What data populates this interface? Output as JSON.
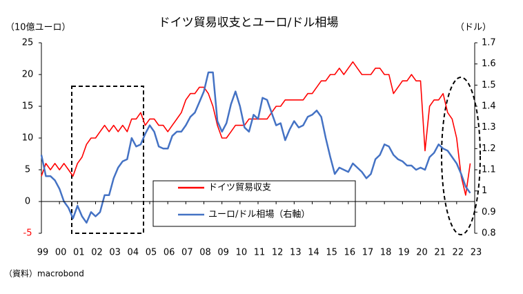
{
  "chart_data": {
    "type": "line",
    "title": "ドイツ貿易収支とユーロ/ドル相場",
    "y_label": "（10億ユーロ）",
    "y2_label": "（ドル）",
    "source": "（資料）macrobond",
    "x": [
      1999,
      1999.25,
      1999.5,
      1999.75,
      2000,
      2000.25,
      2000.5,
      2000.75,
      2001,
      2001.25,
      2001.5,
      2001.75,
      2002,
      2002.25,
      2002.5,
      2002.75,
      2003,
      2003.25,
      2003.5,
      2003.75,
      2004,
      2004.25,
      2004.5,
      2004.75,
      2005,
      2005.25,
      2005.5,
      2005.75,
      2006,
      2006.25,
      2006.5,
      2006.75,
      2007,
      2007.25,
      2007.5,
      2007.75,
      2008,
      2008.25,
      2008.5,
      2008.75,
      2009,
      2009.25,
      2009.5,
      2009.75,
      2010,
      2010.25,
      2010.5,
      2010.75,
      2011,
      2011.25,
      2011.5,
      2011.75,
      2012,
      2012.25,
      2012.5,
      2012.75,
      2013,
      2013.25,
      2013.5,
      2013.75,
      2014,
      2014.25,
      2014.5,
      2014.75,
      2015,
      2015.25,
      2015.5,
      2015.75,
      2016,
      2016.25,
      2016.5,
      2016.75,
      2017,
      2017.25,
      2017.5,
      2017.75,
      2018,
      2018.25,
      2018.5,
      2018.75,
      2019,
      2019.25,
      2019.5,
      2019.75,
      2020,
      2020.25,
      2020.5,
      2020.75,
      2021,
      2021.25,
      2021.5,
      2021.75,
      2022,
      2022.25,
      2022.5,
      2022.75
    ],
    "series": [
      {
        "name": "ドイツ貿易収支",
        "color": "#ff0000",
        "values": [
          4,
          6,
          5,
          6,
          5,
          6,
          5,
          4,
          6,
          7,
          9,
          10,
          10,
          11,
          12,
          11,
          12,
          11,
          12,
          11,
          13,
          13,
          14,
          12,
          13,
          13,
          12,
          12,
          11,
          12,
          13,
          14,
          16,
          17,
          17,
          18,
          18,
          17,
          15,
          12,
          10,
          10,
          11,
          12,
          12,
          12,
          13,
          13,
          13,
          13,
          13,
          14,
          15,
          15,
          16,
          16,
          16,
          16,
          16,
          17,
          17,
          18,
          19,
          19,
          20,
          20,
          21,
          20,
          21,
          22,
          21,
          20,
          20,
          20,
          21,
          21,
          20,
          20,
          17,
          18,
          19,
          19,
          20,
          19,
          19,
          8,
          15,
          16,
          16,
          17,
          14,
          13,
          10,
          4,
          1,
          6
        ]
      },
      {
        "name": "ユーロ/ドル相場（右軸）",
        "color": "#4472c4",
        "axis": "y2",
        "values": [
          1.17,
          1.07,
          1.07,
          1.05,
          1.01,
          0.95,
          0.92,
          0.87,
          0.93,
          0.88,
          0.85,
          0.9,
          0.88,
          0.9,
          0.98,
          0.98,
          1.06,
          1.11,
          1.14,
          1.15,
          1.25,
          1.21,
          1.22,
          1.27,
          1.31,
          1.28,
          1.21,
          1.2,
          1.2,
          1.26,
          1.28,
          1.28,
          1.31,
          1.35,
          1.37,
          1.42,
          1.47,
          1.56,
          1.56,
          1.33,
          1.28,
          1.32,
          1.41,
          1.47,
          1.4,
          1.3,
          1.28,
          1.36,
          1.34,
          1.44,
          1.43,
          1.37,
          1.31,
          1.32,
          1.24,
          1.29,
          1.33,
          1.3,
          1.31,
          1.35,
          1.36,
          1.38,
          1.35,
          1.25,
          1.16,
          1.08,
          1.11,
          1.1,
          1.09,
          1.13,
          1.11,
          1.09,
          1.06,
          1.08,
          1.15,
          1.17,
          1.22,
          1.21,
          1.17,
          1.15,
          1.14,
          1.12,
          1.12,
          1.1,
          1.11,
          1.1,
          1.16,
          1.18,
          1.22,
          1.2,
          1.19,
          1.16,
          1.13,
          1.08,
          1.02,
          0.99
        ]
      }
    ],
    "xlim": [
      1999,
      2023
    ],
    "xticks": [
      {
        "value": 1999,
        "label": "99"
      },
      {
        "value": 2000,
        "label": "00"
      },
      {
        "value": 2001,
        "label": "01"
      },
      {
        "value": 2002,
        "label": "02"
      },
      {
        "value": 2003,
        "label": "03"
      },
      {
        "value": 2004,
        "label": "04"
      },
      {
        "value": 2005,
        "label": "05"
      },
      {
        "value": 2006,
        "label": "06"
      },
      {
        "value": 2007,
        "label": "07"
      },
      {
        "value": 2008,
        "label": "08"
      },
      {
        "value": 2009,
        "label": "09"
      },
      {
        "value": 2010,
        "label": "10"
      },
      {
        "value": 2011,
        "label": "11"
      },
      {
        "value": 2012,
        "label": "12"
      },
      {
        "value": 2013,
        "label": "13"
      },
      {
        "value": 2014,
        "label": "14"
      },
      {
        "value": 2015,
        "label": "15"
      },
      {
        "value": 2016,
        "label": "16"
      },
      {
        "value": 2017,
        "label": "17"
      },
      {
        "value": 2018,
        "label": "18"
      },
      {
        "value": 2019,
        "label": "19"
      },
      {
        "value": 2020,
        "label": "20"
      },
      {
        "value": 2021,
        "label": "21"
      },
      {
        "value": 2022,
        "label": "22"
      },
      {
        "value": 2023,
        "label": "23"
      }
    ],
    "ylim": [
      -5,
      25
    ],
    "yticks": [
      -5,
      0,
      5,
      10,
      15,
      20,
      25
    ],
    "y2lim": [
      0.8,
      1.7
    ],
    "y2ticks": [
      0.8,
      0.9,
      1,
      1.1,
      1.2,
      1.3,
      1.4,
      1.5,
      1.6,
      1.7
    ]
  }
}
